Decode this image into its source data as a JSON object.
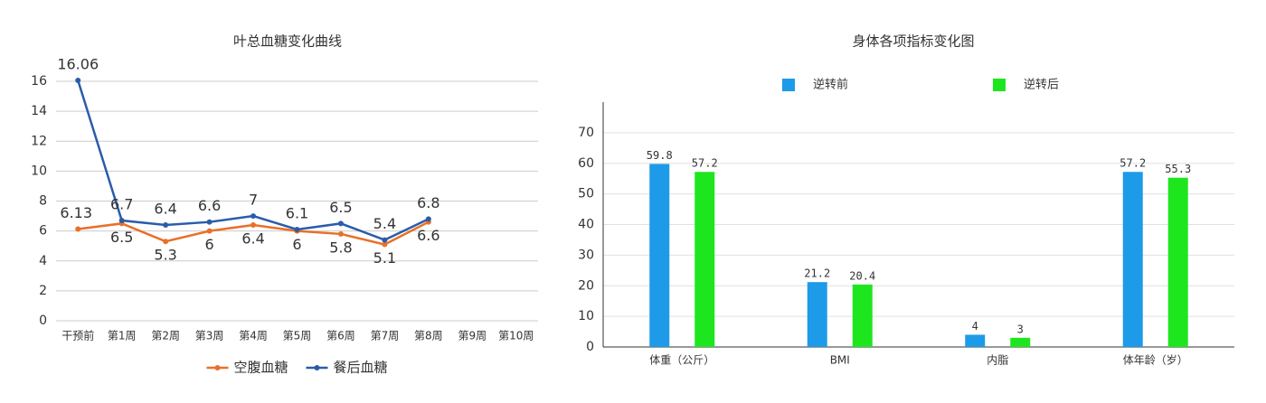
{
  "chart_data": [
    {
      "type": "line",
      "title": "叶总血糖变化曲线",
      "categories": [
        "干预前",
        "第1周",
        "第2周",
        "第3周",
        "第4周",
        "第5周",
        "第6周",
        "第7周",
        "第8周",
        "第9周",
        "第10周"
      ],
      "series": [
        {
          "name": "空腹血糖",
          "color": "#e8702a",
          "values": [
            6.13,
            6.5,
            5.3,
            6,
            6.4,
            6,
            5.8,
            5.1,
            6.6,
            null,
            null
          ]
        },
        {
          "name": "餐后血糖",
          "color": "#2a5caa",
          "values": [
            16.06,
            6.7,
            6.4,
            6.6,
            7,
            6.1,
            6.5,
            5.4,
            6.8,
            null,
            null
          ]
        }
      ],
      "ylim": [
        0,
        16
      ],
      "yticks": [
        0,
        2,
        4,
        6,
        8,
        10,
        12,
        14,
        16
      ],
      "grid": true,
      "legend": "bottom"
    },
    {
      "type": "bar",
      "title": "身体各项指标变化图",
      "categories": [
        "体重（公斤）",
        "BMI",
        "内脂",
        "体年龄（岁）"
      ],
      "series": [
        {
          "name": "逆转前",
          "color": "#1e9be8",
          "values": [
            59.8,
            21.2,
            4,
            57.2
          ]
        },
        {
          "name": "逆转后",
          "color": "#1ee61e",
          "values": [
            57.2,
            20.4,
            3,
            55.3
          ]
        }
      ],
      "ylim": [
        0,
        80
      ],
      "yticks": [
        0,
        10,
        20,
        30,
        40,
        50,
        60,
        70
      ],
      "grid": true,
      "legend": "top"
    }
  ]
}
